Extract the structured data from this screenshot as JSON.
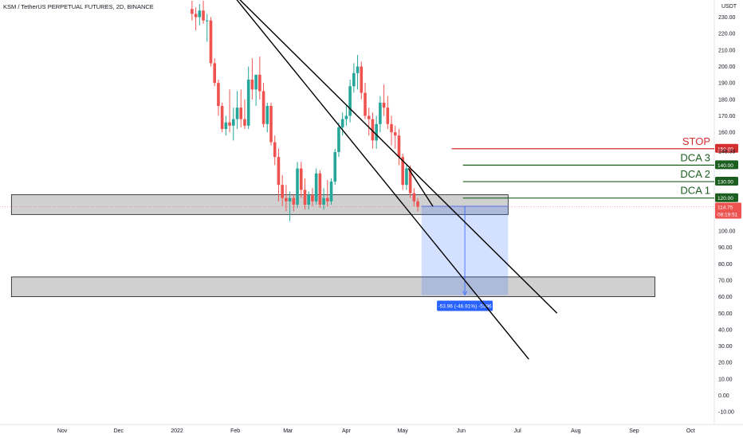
{
  "header": {
    "title": "KSM / TetherUS PERPETUAL FUTURES, 2D, BINANCE"
  },
  "chart_data": {
    "type": "candlestick",
    "currency": "USDT",
    "ylim": [
      -15,
      235
    ],
    "y_ticks": [
      230,
      220,
      210,
      200,
      190,
      180,
      170,
      160,
      150,
      140,
      130,
      120,
      110,
      100,
      90,
      80,
      70,
      60,
      50,
      40,
      30,
      20,
      10,
      0,
      -10
    ],
    "x_labels": [
      {
        "label": "Nov",
        "date": "2021-11-01"
      },
      {
        "label": "Dec",
        "date": "2021-12-01"
      },
      {
        "label": "2022",
        "date": "2022-01-01"
      },
      {
        "label": "Feb",
        "date": "2022-02-01"
      },
      {
        "label": "Mar",
        "date": "2022-03-01"
      },
      {
        "label": "Apr",
        "date": "2022-04-01"
      },
      {
        "label": "May",
        "date": "2022-05-01"
      },
      {
        "label": "Jun",
        "date": "2022-06-01"
      },
      {
        "label": "Jul",
        "date": "2022-07-01"
      },
      {
        "label": "Aug",
        "date": "2022-08-01"
      },
      {
        "label": "Sep",
        "date": "2022-09-01"
      },
      {
        "label": "Oct",
        "date": "2022-10-01"
      }
    ],
    "candles": [
      {
        "d": "2022-01-09",
        "o": 235,
        "h": 240,
        "l": 228,
        "c": 232
      },
      {
        "d": "2022-01-11",
        "o": 232,
        "h": 236,
        "l": 222,
        "c": 230
      },
      {
        "d": "2022-01-13",
        "o": 230,
        "h": 238,
        "l": 225,
        "c": 234
      },
      {
        "d": "2022-01-15",
        "o": 234,
        "h": 240,
        "l": 226,
        "c": 228
      },
      {
        "d": "2022-01-17",
        "o": 228,
        "h": 232,
        "l": 215,
        "c": 228
      },
      {
        "d": "2022-01-19",
        "o": 228,
        "h": 230,
        "l": 200,
        "c": 202
      },
      {
        "d": "2022-01-21",
        "o": 202,
        "h": 205,
        "l": 188,
        "c": 190
      },
      {
        "d": "2022-01-23",
        "o": 190,
        "h": 192,
        "l": 170,
        "c": 176
      },
      {
        "d": "2022-01-25",
        "o": 176,
        "h": 178,
        "l": 160,
        "c": 162
      },
      {
        "d": "2022-01-27",
        "o": 162,
        "h": 170,
        "l": 158,
        "c": 166
      },
      {
        "d": "2022-01-29",
        "o": 166,
        "h": 186,
        "l": 160,
        "c": 164
      },
      {
        "d": "2022-01-31",
        "o": 164,
        "h": 175,
        "l": 155,
        "c": 168
      },
      {
        "d": "2022-02-02",
        "o": 168,
        "h": 185,
        "l": 162,
        "c": 175
      },
      {
        "d": "2022-02-04",
        "o": 175,
        "h": 186,
        "l": 163,
        "c": 168
      },
      {
        "d": "2022-02-06",
        "o": 168,
        "h": 180,
        "l": 162,
        "c": 164
      },
      {
        "d": "2022-02-08",
        "o": 164,
        "h": 200,
        "l": 162,
        "c": 192
      },
      {
        "d": "2022-02-10",
        "o": 192,
        "h": 205,
        "l": 180,
        "c": 186
      },
      {
        "d": "2022-02-12",
        "o": 186,
        "h": 195,
        "l": 176,
        "c": 195
      },
      {
        "d": "2022-02-14",
        "o": 195,
        "h": 206,
        "l": 180,
        "c": 185
      },
      {
        "d": "2022-02-16",
        "o": 185,
        "h": 190,
        "l": 163,
        "c": 165
      },
      {
        "d": "2022-02-18",
        "o": 165,
        "h": 178,
        "l": 160,
        "c": 176
      },
      {
        "d": "2022-02-20",
        "o": 176,
        "h": 178,
        "l": 152,
        "c": 154
      },
      {
        "d": "2022-02-22",
        "o": 154,
        "h": 158,
        "l": 140,
        "c": 145
      },
      {
        "d": "2022-02-24",
        "o": 145,
        "h": 150,
        "l": 118,
        "c": 128
      },
      {
        "d": "2022-02-26",
        "o": 128,
        "h": 134,
        "l": 115,
        "c": 120
      },
      {
        "d": "2022-02-28",
        "o": 120,
        "h": 128,
        "l": 112,
        "c": 118
      },
      {
        "d": "2022-03-02",
        "o": 118,
        "h": 124,
        "l": 106,
        "c": 120
      },
      {
        "d": "2022-03-04",
        "o": 120,
        "h": 122,
        "l": 112,
        "c": 116
      },
      {
        "d": "2022-03-06",
        "o": 116,
        "h": 142,
        "l": 114,
        "c": 138
      },
      {
        "d": "2022-03-08",
        "o": 138,
        "h": 142,
        "l": 120,
        "c": 125
      },
      {
        "d": "2022-03-10",
        "o": 125,
        "h": 132,
        "l": 113,
        "c": 116
      },
      {
        "d": "2022-03-12",
        "o": 116,
        "h": 124,
        "l": 113,
        "c": 122
      },
      {
        "d": "2022-03-14",
        "o": 122,
        "h": 126,
        "l": 115,
        "c": 118
      },
      {
        "d": "2022-03-16",
        "o": 118,
        "h": 138,
        "l": 116,
        "c": 135
      },
      {
        "d": "2022-03-18",
        "o": 135,
        "h": 137,
        "l": 114,
        "c": 116
      },
      {
        "d": "2022-03-20",
        "o": 116,
        "h": 126,
        "l": 113,
        "c": 120
      },
      {
        "d": "2022-03-22",
        "o": 120,
        "h": 131,
        "l": 115,
        "c": 118
      },
      {
        "d": "2022-03-24",
        "o": 118,
        "h": 132,
        "l": 116,
        "c": 130
      },
      {
        "d": "2022-03-26",
        "o": 130,
        "h": 150,
        "l": 128,
        "c": 148
      },
      {
        "d": "2022-03-28",
        "o": 148,
        "h": 166,
        "l": 145,
        "c": 163
      },
      {
        "d": "2022-03-30",
        "o": 163,
        "h": 172,
        "l": 158,
        "c": 168
      },
      {
        "d": "2022-04-01",
        "o": 168,
        "h": 176,
        "l": 164,
        "c": 170
      },
      {
        "d": "2022-04-03",
        "o": 170,
        "h": 192,
        "l": 166,
        "c": 188
      },
      {
        "d": "2022-04-05",
        "o": 188,
        "h": 202,
        "l": 184,
        "c": 196
      },
      {
        "d": "2022-04-07",
        "o": 196,
        "h": 207,
        "l": 186,
        "c": 200
      },
      {
        "d": "2022-04-09",
        "o": 200,
        "h": 203,
        "l": 180,
        "c": 184
      },
      {
        "d": "2022-04-11",
        "o": 184,
        "h": 190,
        "l": 168,
        "c": 170
      },
      {
        "d": "2022-04-13",
        "o": 170,
        "h": 175,
        "l": 158,
        "c": 168
      },
      {
        "d": "2022-04-15",
        "o": 168,
        "h": 172,
        "l": 150,
        "c": 155
      },
      {
        "d": "2022-04-17",
        "o": 155,
        "h": 170,
        "l": 150,
        "c": 165
      },
      {
        "d": "2022-04-19",
        "o": 165,
        "h": 182,
        "l": 160,
        "c": 178
      },
      {
        "d": "2022-04-21",
        "o": 178,
        "h": 189,
        "l": 170,
        "c": 175
      },
      {
        "d": "2022-04-23",
        "o": 175,
        "h": 182,
        "l": 162,
        "c": 165
      },
      {
        "d": "2022-04-25",
        "o": 165,
        "h": 170,
        "l": 152,
        "c": 160
      },
      {
        "d": "2022-04-27",
        "o": 160,
        "h": 164,
        "l": 150,
        "c": 158
      },
      {
        "d": "2022-04-29",
        "o": 158,
        "h": 162,
        "l": 140,
        "c": 145
      },
      {
        "d": "2022-05-01",
        "o": 145,
        "h": 147,
        "l": 125,
        "c": 128
      },
      {
        "d": "2022-05-03",
        "o": 128,
        "h": 140,
        "l": 125,
        "c": 138
      },
      {
        "d": "2022-05-05",
        "o": 138,
        "h": 140,
        "l": 120,
        "c": 123
      },
      {
        "d": "2022-05-07",
        "o": 123,
        "h": 126,
        "l": 115,
        "c": 118
      },
      {
        "d": "2022-05-09",
        "o": 118,
        "h": 120,
        "l": 112,
        "c": 114.75
      }
    ],
    "zones": [
      {
        "from": "2021-10-05",
        "to": "2022-06-26",
        "low": 110,
        "high": 122
      },
      {
        "from": "2021-10-05",
        "to": "2022-09-12",
        "low": 60,
        "high": 72
      }
    ],
    "trendlines": [
      {
        "p1": {
          "d": "2022-01-19",
          "y": 260
        },
        "p2": {
          "d": "2022-07-07",
          "y": 22
        }
      },
      {
        "p1": {
          "d": "2022-01-19",
          "y": 258
        },
        "p2": {
          "d": "2022-07-22",
          "y": 50
        }
      },
      {
        "p1": {
          "d": "2022-05-04",
          "y": 138
        },
        "p2": {
          "d": "2022-05-17",
          "y": 115
        }
      }
    ],
    "levels": [
      {
        "label": "STOP",
        "value": 150,
        "tag": "150.00",
        "color": "#d32f2f",
        "from": "2022-05-27"
      },
      {
        "label": "DCA 3",
        "value": 140,
        "tag": "140.00",
        "color": "#1b5e20",
        "from": "2022-06-02"
      },
      {
        "label": "DCA 2",
        "value": 130,
        "tag": "130.00",
        "color": "#1b5e20",
        "from": "2022-06-02"
      },
      {
        "label": "DCA 1",
        "value": 120,
        "tag": "120.00",
        "color": "#1b5e20",
        "from": "2022-06-02"
      }
    ],
    "axis_markers": [
      {
        "value": 148.39,
        "label": "148.39"
      }
    ],
    "last_price": {
      "value": 114.75,
      "label": "114.75",
      "countdown": "08:19:51",
      "color": "#ef5350"
    },
    "measure": {
      "from": "2022-05-11",
      "to": "2022-06-26",
      "top": 115,
      "bottom": 61,
      "label": "-53.96 (-46.91%) -5396"
    },
    "colors": {
      "up": "#26a69a",
      "down": "#ef5350",
      "measure": "#2962ff",
      "zone": "#c8c8c8"
    }
  }
}
